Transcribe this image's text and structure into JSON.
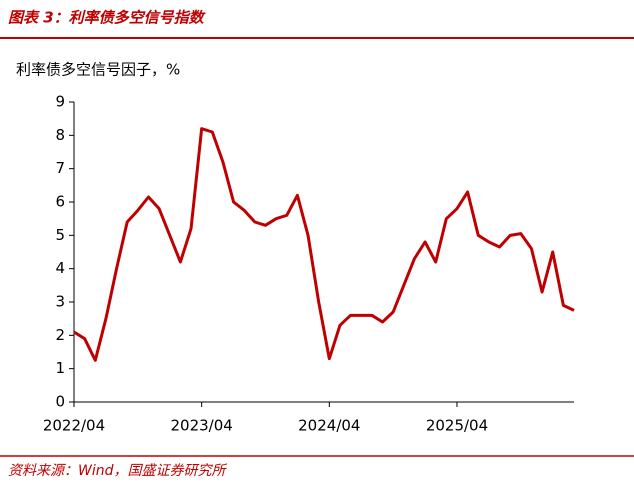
{
  "header": {
    "title": "图表 3：利率债多空信号指数"
  },
  "chart_data": {
    "type": "line",
    "title": "利率债多空信号因子，%",
    "categories": [
      "2022/04",
      null,
      null,
      null,
      null,
      null,
      null,
      null,
      null,
      null,
      null,
      null,
      "2023/04",
      null,
      null,
      null,
      null,
      null,
      null,
      null,
      null,
      null,
      null,
      null,
      "2024/04",
      null,
      null,
      null,
      null,
      null,
      null,
      null,
      null,
      null,
      null,
      null,
      "2025/04",
      null,
      null,
      null,
      null,
      null,
      null,
      null,
      null,
      null,
      null,
      null
    ],
    "series": [
      {
        "name": "利率债多空信号因子",
        "color": "#c00000",
        "values": [
          2.1,
          1.9,
          1.25,
          2.5,
          4.0,
          5.4,
          5.75,
          6.15,
          5.8,
          5.0,
          4.2,
          5.2,
          8.2,
          8.1,
          7.2,
          6.0,
          5.75,
          5.4,
          5.3,
          5.5,
          5.6,
          6.2,
          5.0,
          3.0,
          1.3,
          2.3,
          2.6,
          2.6,
          2.6,
          2.4,
          2.7,
          3.5,
          4.3,
          4.8,
          4.2,
          5.5,
          5.8,
          6.3,
          5.0,
          4.8,
          4.65,
          5.0,
          5.05,
          4.6,
          3.3,
          4.5,
          2.9,
          2.75
        ]
      }
    ],
    "ylim": [
      0,
      9
    ],
    "yticks": [
      0,
      1,
      2,
      3,
      4,
      5,
      6,
      7,
      8,
      9
    ],
    "grid": false
  },
  "footer": {
    "source": "资料来源：Wind，国盛证券研究所"
  }
}
